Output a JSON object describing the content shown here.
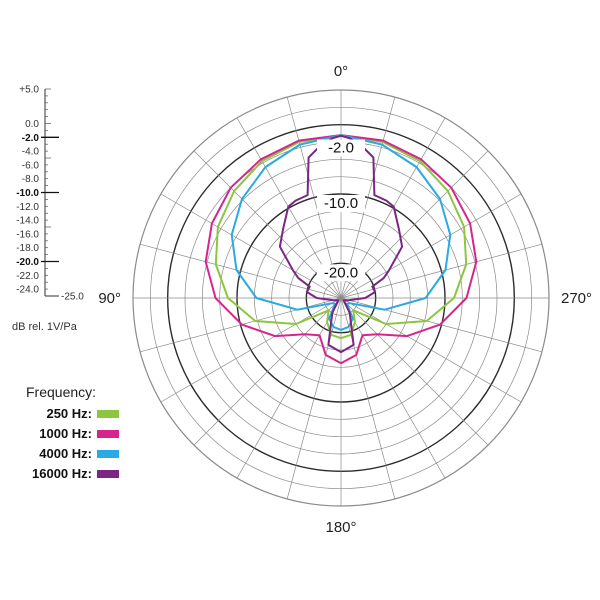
{
  "chart_data": {
    "type": "polar",
    "unit_label": "dB rel. 1V/Pa",
    "scale": {
      "labels": [
        "+5.0",
        "0.0",
        "-2.0",
        "-4.0",
        "-6.0",
        "-8.0",
        "-10.0",
        "-12.0",
        "-14.0",
        "-16.0",
        "-18.0",
        "-20.0",
        "-22.0",
        "-24.0",
        "-25.0"
      ],
      "values": [
        5,
        0,
        -2,
        -4,
        -6,
        -8,
        -10,
        -12,
        -14,
        -16,
        -18,
        -20,
        -22,
        -24,
        -25
      ],
      "bold_values": [
        -2,
        -10,
        -20
      ],
      "range": [
        -25,
        5
      ]
    },
    "angle_labels": [
      {
        "angle": 0,
        "label": "0°"
      },
      {
        "angle": 90,
        "label": "90°"
      },
      {
        "angle": 180,
        "label": "180°"
      },
      {
        "angle": 270,
        "label": "270°"
      }
    ],
    "ring_labels": [
      {
        "value": -2,
        "label": "-2.0"
      },
      {
        "value": -10,
        "label": "-10.0"
      },
      {
        "value": -20,
        "label": "-20.0"
      }
    ],
    "legend_title": "Frequency:",
    "series": [
      {
        "name": "250 Hz:",
        "color": "#8cc63f",
        "angles": [
          0,
          15,
          30,
          45,
          60,
          75,
          90,
          105,
          120,
          135,
          150,
          165,
          180,
          195,
          210,
          225,
          240,
          255,
          270,
          285,
          300,
          315,
          330,
          345
        ],
        "values": [
          -1.5,
          -1.7,
          -2.2,
          -3.2,
          -4.5,
          -6.3,
          -8.7,
          -12.2,
          -17.5,
          -22.5,
          -21.0,
          -19.5,
          -19.2,
          -19.5,
          -21.0,
          -22.5,
          -17.5,
          -12.2,
          -8.7,
          -6.3,
          -4.5,
          -3.2,
          -2.2,
          -1.7
        ]
      },
      {
        "name": "1000 Hz:",
        "color": "#d6258c",
        "angles": [
          0,
          15,
          30,
          45,
          60,
          75,
          90,
          105,
          120,
          135,
          150,
          165,
          180,
          195,
          210,
          225,
          240,
          255,
          270,
          285,
          300,
          315,
          330,
          345
        ],
        "values": [
          -1.5,
          -1.5,
          -1.9,
          -2.5,
          -3.5,
          -4.8,
          -6.9,
          -10.2,
          -14.0,
          -17.6,
          -18.8,
          -16.5,
          -15.6,
          -16.5,
          -18.8,
          -17.6,
          -14.0,
          -10.2,
          -6.9,
          -4.8,
          -3.5,
          -2.5,
          -1.9,
          -1.5
        ]
      },
      {
        "name": "4000 Hz:",
        "color": "#29aae2",
        "angles": [
          0,
          15,
          30,
          45,
          60,
          75,
          90,
          105,
          120,
          135,
          150,
          165,
          180,
          195,
          210,
          225,
          240,
          255,
          270,
          285,
          300,
          315,
          330,
          345
        ],
        "values": [
          -1.5,
          -2.1,
          -3.2,
          -4.8,
          -6.8,
          -9.4,
          -12.8,
          -18.5,
          -23.5,
          -23.8,
          -21.6,
          -20.7,
          -20.4,
          -20.7,
          -21.6,
          -23.8,
          -23.5,
          -18.5,
          -12.8,
          -9.4,
          -6.8,
          -4.8,
          -3.2,
          -2.1
        ]
      },
      {
        "name": "16000 Hz:",
        "color": "#7a2682",
        "angles": [
          0,
          3,
          6,
          9,
          13,
          18,
          25,
          30,
          40,
          50,
          60,
          65,
          70,
          80,
          90,
          110,
          130,
          150,
          165,
          180,
          195,
          210,
          230,
          250,
          270,
          280,
          290,
          295,
          300,
          310,
          320,
          330,
          335,
          342,
          347,
          351,
          354,
          357
        ],
        "values": [
          -1.6,
          -1.9,
          -2.5,
          -3.2,
          -4.2,
          -9.4,
          -9.5,
          -9.8,
          -12.0,
          -13.5,
          -17.0,
          -18.2,
          -20.2,
          -20.0,
          -21.5,
          -24.0,
          -24.5,
          -22.5,
          -18.0,
          -17.2,
          -18.0,
          -22.5,
          -24.5,
          -24.0,
          -21.5,
          -20.0,
          -20.2,
          -18.2,
          -17.0,
          -13.5,
          -12.0,
          -9.8,
          -9.5,
          -9.4,
          -4.2,
          -3.2,
          -2.5,
          -1.9
        ]
      }
    ]
  }
}
